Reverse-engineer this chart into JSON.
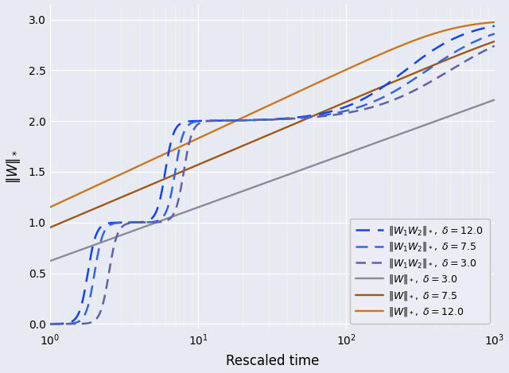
{
  "xlabel": "Rescaled time",
  "ylabel": "$\\|W\\|_*$",
  "xlim": [
    1,
    1000
  ],
  "ylim": [
    -0.05,
    3.15
  ],
  "yticks": [
    0.0,
    0.5,
    1.0,
    1.5,
    2.0,
    2.5,
    3.0
  ],
  "background_color": "#e8eaf2",
  "solid_colors": {
    "3.0": "#8a8a9a",
    "7.5": "#a05818",
    "12.0": "#c87820"
  },
  "dashed_colors": {
    "3.0": "#6060a8",
    "7.5": "#3366dd",
    "12.0": "#1144ee"
  },
  "legend_labels": {
    "dashed_12": "$\\|W_1W_2\\|_*,\\ \\delta =12.0$",
    "dashed_7.5": "$\\|W_1W_2\\|_*,\\ \\delta =7.5$",
    "dashed_3": "$\\|W_1W_2\\|_*,\\ \\delta =3.0$",
    "solid_3": "$\\|W\\|_*,\\ \\delta =3.0$",
    "solid_7.5": "$\\|W\\|_*,\\ \\delta =7.5$",
    "solid_12": "$\\|W\\|_*,\\ \\delta =12.0$"
  }
}
